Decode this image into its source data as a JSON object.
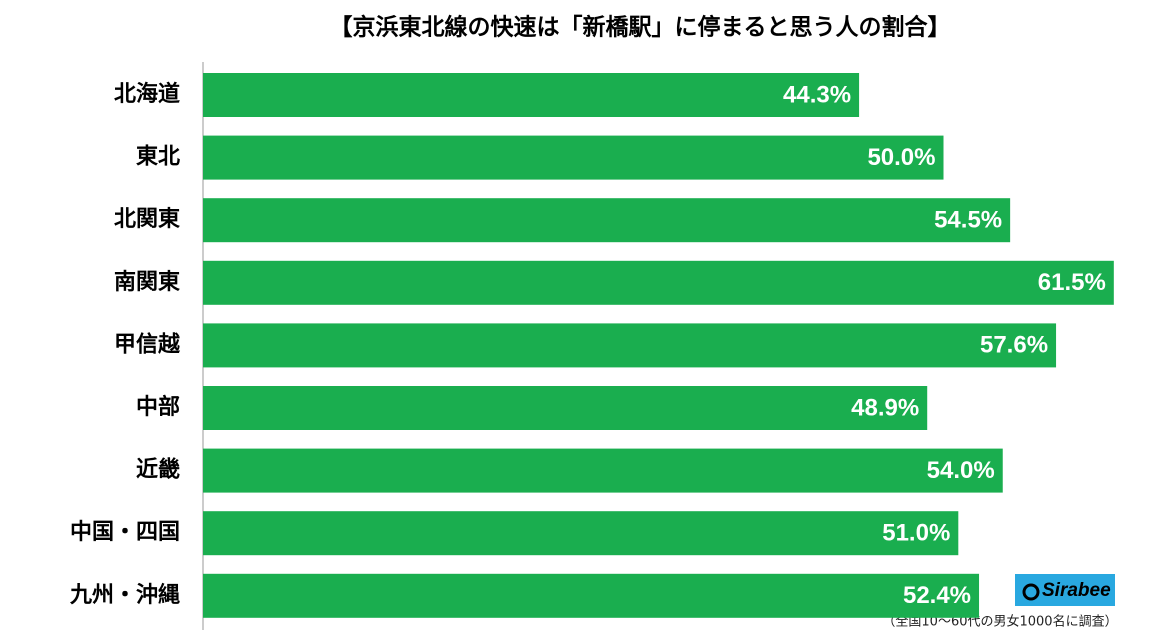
{
  "chart_data": {
    "type": "bar",
    "orientation": "horizontal",
    "title": "【京浜東北線の快速は「新橋駅」に停まると思う人の割合】",
    "categories": [
      "北海道",
      "東北",
      "北関東",
      "南関東",
      "甲信越",
      "中部",
      "近畿",
      "中国・四国",
      "九州・沖縄"
    ],
    "values": [
      44.3,
      50.0,
      54.5,
      61.5,
      57.6,
      48.9,
      54.0,
      51.0,
      52.4
    ],
    "value_labels": [
      "44.3%",
      "50.0%",
      "54.5%",
      "61.5%",
      "57.6%",
      "48.9%",
      "54.0%",
      "51.0%",
      "52.4%"
    ],
    "color": "#1aae4f",
    "note": "（全国10～60代の男女1000名に調査）",
    "logo": "Sirabee"
  }
}
